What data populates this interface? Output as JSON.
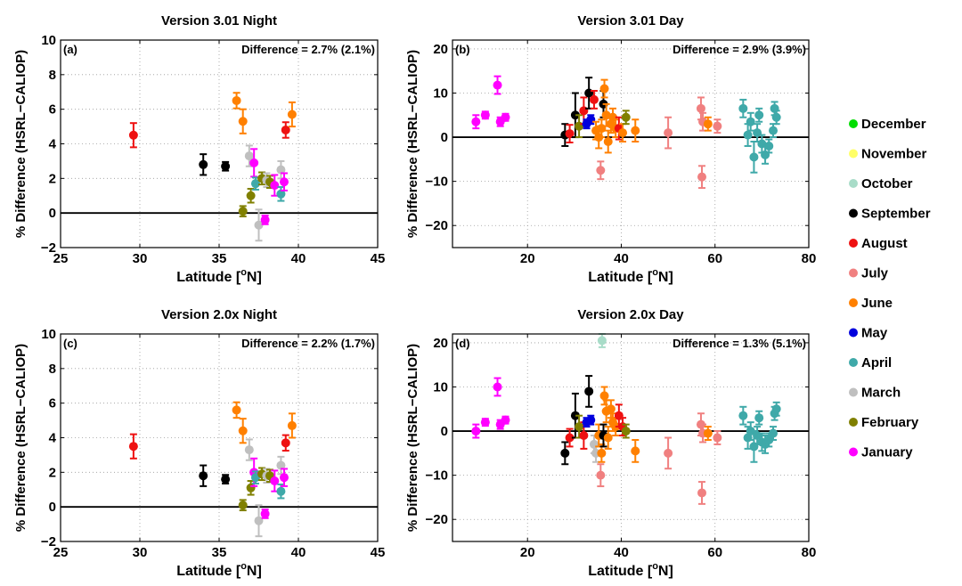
{
  "figure": {
    "ylabel": "% Difference (HSRL−CALIOP)",
    "xlabel_prefix": "Latitude [",
    "xlabel_sup": "o",
    "xlabel_suffix": "N]"
  },
  "months": [
    {
      "name": "December",
      "color": "#00dd00"
    },
    {
      "name": "November",
      "color": "#ffff66"
    },
    {
      "name": "October",
      "color": "#a8dcc8"
    },
    {
      "name": "September",
      "color": "#000000"
    },
    {
      "name": "August",
      "color": "#ee1111"
    },
    {
      "name": "July",
      "color": "#f08080"
    },
    {
      "name": "June",
      "color": "#ff8000"
    },
    {
      "name": "May",
      "color": "#0000dd"
    },
    {
      "name": "April",
      "color": "#3fa9a9"
    },
    {
      "name": "March",
      "color": "#bfbfbf"
    },
    {
      "name": "February",
      "color": "#808000"
    },
    {
      "name": "January",
      "color": "#ff00ff"
    }
  ],
  "chart_data": [
    {
      "type": "scatter",
      "panel": "(a)",
      "title": "Version 3.01 Night",
      "annotation": "Difference = 2.7% (2.1%)",
      "xlim": [
        25,
        45
      ],
      "ylim": [
        -2,
        10
      ],
      "xticks": [
        25,
        30,
        35,
        40,
        45
      ],
      "yticks": [
        -2,
        0,
        2,
        4,
        6,
        8,
        10
      ],
      "points": [
        {
          "x": 29.6,
          "y": 4.5,
          "err": 0.7,
          "month": "August"
        },
        {
          "x": 34.0,
          "y": 2.8,
          "err": 0.6,
          "month": "September"
        },
        {
          "x": 35.4,
          "y": 2.7,
          "err": 0.25,
          "month": "September"
        },
        {
          "x": 36.1,
          "y": 6.5,
          "err": 0.45,
          "month": "June"
        },
        {
          "x": 36.5,
          "y": 0.1,
          "err": 0.3,
          "month": "February"
        },
        {
          "x": 36.5,
          "y": 5.3,
          "err": 0.7,
          "month": "June"
        },
        {
          "x": 36.9,
          "y": 3.3,
          "err": 0.6,
          "month": "March"
        },
        {
          "x": 37.0,
          "y": 1.0,
          "err": 0.4,
          "month": "February"
        },
        {
          "x": 37.2,
          "y": 2.9,
          "err": 0.8,
          "month": "January"
        },
        {
          "x": 37.3,
          "y": 1.7,
          "err": 0.35,
          "month": "April"
        },
        {
          "x": 37.5,
          "y": -0.7,
          "err": 0.9,
          "month": "March"
        },
        {
          "x": 37.7,
          "y": 2.0,
          "err": 0.35,
          "month": "February"
        },
        {
          "x": 37.9,
          "y": -0.4,
          "err": 0.25,
          "month": "January"
        },
        {
          "x": 38.0,
          "y": 1.9,
          "err": 0.4,
          "month": "March"
        },
        {
          "x": 38.2,
          "y": 1.8,
          "err": 0.35,
          "month": "February"
        },
        {
          "x": 38.5,
          "y": 1.6,
          "err": 0.6,
          "month": "January"
        },
        {
          "x": 38.9,
          "y": 2.5,
          "err": 0.5,
          "month": "March"
        },
        {
          "x": 38.9,
          "y": 1.1,
          "err": 0.4,
          "month": "April"
        },
        {
          "x": 39.1,
          "y": 1.8,
          "err": 0.5,
          "month": "January"
        },
        {
          "x": 39.2,
          "y": 4.8,
          "err": 0.45,
          "month": "August"
        },
        {
          "x": 39.6,
          "y": 5.7,
          "err": 0.7,
          "month": "June"
        }
      ]
    },
    {
      "type": "scatter",
      "panel": "(b)",
      "title": "Version 3.01 Day",
      "annotation": "Difference = 2.9% (3.9%)",
      "xlim": [
        4,
        80
      ],
      "ylim": [
        -25,
        22
      ],
      "xticks": [
        20,
        40,
        60,
        80
      ],
      "yticks": [
        -20,
        -10,
        0,
        10,
        20
      ],
      "points": [
        {
          "x": 9.0,
          "y": 3.5,
          "err": 1.5,
          "month": "January"
        },
        {
          "x": 11.0,
          "y": 5.0,
          "err": 0.8,
          "month": "January"
        },
        {
          "x": 13.6,
          "y": 11.8,
          "err": 2.0,
          "month": "January"
        },
        {
          "x": 14.2,
          "y": 3.5,
          "err": 1.0,
          "month": "January"
        },
        {
          "x": 15.3,
          "y": 4.5,
          "err": 0.8,
          "month": "January"
        },
        {
          "x": 28.0,
          "y": 0.5,
          "err": 2.5,
          "month": "September"
        },
        {
          "x": 29.0,
          "y": 0.8,
          "err": 2.0,
          "month": "August"
        },
        {
          "x": 30.2,
          "y": 5.0,
          "err": 5.0,
          "month": "September"
        },
        {
          "x": 31.0,
          "y": 2.5,
          "err": 2.5,
          "month": "February"
        },
        {
          "x": 32.0,
          "y": 6.0,
          "err": 3.0,
          "month": "August"
        },
        {
          "x": 32.6,
          "y": 3.0,
          "err": 1.0,
          "month": "May"
        },
        {
          "x": 33.1,
          "y": 10.0,
          "err": 3.5,
          "month": "September"
        },
        {
          "x": 33.5,
          "y": 4.0,
          "err": 1.0,
          "month": "May"
        },
        {
          "x": 34.2,
          "y": 8.5,
          "err": 2.0,
          "month": "August"
        },
        {
          "x": 34.6,
          "y": 1.5,
          "err": 2.0,
          "month": "June"
        },
        {
          "x": 35.2,
          "y": 0.0,
          "err": 2.5,
          "month": "June"
        },
        {
          "x": 35.6,
          "y": -7.5,
          "err": 2.0,
          "month": "July"
        },
        {
          "x": 35.8,
          "y": 2.0,
          "err": 2.0,
          "month": "June"
        },
        {
          "x": 36.2,
          "y": 7.5,
          "err": 3.0,
          "month": "September"
        },
        {
          "x": 36.4,
          "y": 11.0,
          "err": 2.0,
          "month": "June"
        },
        {
          "x": 36.8,
          "y": 5.0,
          "err": 2.5,
          "month": "June"
        },
        {
          "x": 37.2,
          "y": -1.0,
          "err": 2.5,
          "month": "June"
        },
        {
          "x": 37.8,
          "y": 3.0,
          "err": 2.0,
          "month": "June"
        },
        {
          "x": 38.2,
          "y": 4.5,
          "err": 2.0,
          "month": "June"
        },
        {
          "x": 38.8,
          "y": 2.0,
          "err": 2.0,
          "month": "June"
        },
        {
          "x": 39.5,
          "y": 2.0,
          "err": 2.5,
          "month": "August"
        },
        {
          "x": 40.3,
          "y": 1.0,
          "err": 2.0,
          "month": "June"
        },
        {
          "x": 41.0,
          "y": 4.5,
          "err": 1.5,
          "month": "February"
        },
        {
          "x": 43.0,
          "y": 1.5,
          "err": 2.5,
          "month": "June"
        },
        {
          "x": 50.0,
          "y": 1.0,
          "err": 3.5,
          "month": "July"
        },
        {
          "x": 57.0,
          "y": 6.5,
          "err": 2.5,
          "month": "July"
        },
        {
          "x": 57.2,
          "y": -9.0,
          "err": 2.5,
          "month": "July"
        },
        {
          "x": 57.4,
          "y": 3.5,
          "err": 2.0,
          "month": "July"
        },
        {
          "x": 58.5,
          "y": 3.0,
          "err": 1.5,
          "month": "June"
        },
        {
          "x": 60.5,
          "y": 2.5,
          "err": 1.5,
          "month": "July"
        },
        {
          "x": 66.0,
          "y": 6.5,
          "err": 2.0,
          "month": "April"
        },
        {
          "x": 67.0,
          "y": 0.5,
          "err": 2.5,
          "month": "April"
        },
        {
          "x": 67.6,
          "y": 3.5,
          "err": 2.0,
          "month": "April"
        },
        {
          "x": 68.3,
          "y": -4.5,
          "err": 3.5,
          "month": "April"
        },
        {
          "x": 69.0,
          "y": 1.0,
          "err": 2.0,
          "month": "April"
        },
        {
          "x": 69.4,
          "y": 5.0,
          "err": 1.5,
          "month": "April"
        },
        {
          "x": 70.0,
          "y": -1.5,
          "err": 2.0,
          "month": "April"
        },
        {
          "x": 70.7,
          "y": -4.0,
          "err": 2.0,
          "month": "April"
        },
        {
          "x": 71.5,
          "y": -2.0,
          "err": 1.5,
          "month": "April"
        },
        {
          "x": 72.4,
          "y": 1.5,
          "err": 1.5,
          "month": "April"
        },
        {
          "x": 72.7,
          "y": 6.5,
          "err": 1.5,
          "month": "April"
        },
        {
          "x": 73.1,
          "y": 4.5,
          "err": 1.5,
          "month": "April"
        }
      ]
    },
    {
      "type": "scatter",
      "panel": "(c)",
      "title": "Version 2.0x Night",
      "annotation": "Difference = 2.2% (1.7%)",
      "xlim": [
        25,
        45
      ],
      "ylim": [
        -2,
        10
      ],
      "xticks": [
        25,
        30,
        35,
        40,
        45
      ],
      "yticks": [
        -2,
        0,
        2,
        4,
        6,
        8,
        10
      ],
      "points": [
        {
          "x": 29.6,
          "y": 3.5,
          "err": 0.7,
          "month": "August"
        },
        {
          "x": 34.0,
          "y": 1.8,
          "err": 0.6,
          "month": "September"
        },
        {
          "x": 35.4,
          "y": 1.6,
          "err": 0.25,
          "month": "September"
        },
        {
          "x": 36.1,
          "y": 5.6,
          "err": 0.45,
          "month": "June"
        },
        {
          "x": 36.5,
          "y": 0.1,
          "err": 0.3,
          "month": "February"
        },
        {
          "x": 36.5,
          "y": 4.4,
          "err": 0.7,
          "month": "June"
        },
        {
          "x": 36.9,
          "y": 3.3,
          "err": 0.6,
          "month": "March"
        },
        {
          "x": 37.0,
          "y": 1.1,
          "err": 0.4,
          "month": "February"
        },
        {
          "x": 37.2,
          "y": 2.0,
          "err": 0.8,
          "month": "January"
        },
        {
          "x": 37.3,
          "y": 1.7,
          "err": 0.35,
          "month": "April"
        },
        {
          "x": 37.5,
          "y": -0.8,
          "err": 0.9,
          "month": "March"
        },
        {
          "x": 37.7,
          "y": 1.9,
          "err": 0.35,
          "month": "February"
        },
        {
          "x": 37.9,
          "y": -0.4,
          "err": 0.25,
          "month": "January"
        },
        {
          "x": 38.0,
          "y": 1.8,
          "err": 0.4,
          "month": "March"
        },
        {
          "x": 38.2,
          "y": 1.8,
          "err": 0.35,
          "month": "February"
        },
        {
          "x": 38.5,
          "y": 1.5,
          "err": 0.6,
          "month": "January"
        },
        {
          "x": 38.9,
          "y": 2.4,
          "err": 0.5,
          "month": "March"
        },
        {
          "x": 38.9,
          "y": 0.9,
          "err": 0.4,
          "month": "April"
        },
        {
          "x": 39.1,
          "y": 1.7,
          "err": 0.5,
          "month": "January"
        },
        {
          "x": 39.2,
          "y": 3.7,
          "err": 0.45,
          "month": "August"
        },
        {
          "x": 39.6,
          "y": 4.7,
          "err": 0.7,
          "month": "June"
        }
      ]
    },
    {
      "type": "scatter",
      "panel": "(d)",
      "title": "Version 2.0x Day",
      "annotation": "Difference = 1.3% (5.1%)",
      "xlim": [
        4,
        80
      ],
      "ylim": [
        -25,
        22
      ],
      "xticks": [
        20,
        40,
        60,
        80
      ],
      "yticks": [
        -20,
        -10,
        0,
        10,
        20
      ],
      "points": [
        {
          "x": 9.0,
          "y": 0.0,
          "err": 1.5,
          "month": "January"
        },
        {
          "x": 11.0,
          "y": 2.0,
          "err": 0.8,
          "month": "January"
        },
        {
          "x": 13.6,
          "y": 10.0,
          "err": 2.0,
          "month": "January"
        },
        {
          "x": 14.2,
          "y": 1.5,
          "err": 1.0,
          "month": "January"
        },
        {
          "x": 15.3,
          "y": 2.5,
          "err": 0.8,
          "month": "January"
        },
        {
          "x": 28.0,
          "y": -5.0,
          "err": 2.5,
          "month": "September"
        },
        {
          "x": 29.0,
          "y": -1.5,
          "err": 2.0,
          "month": "August"
        },
        {
          "x": 30.2,
          "y": 3.5,
          "err": 5.0,
          "month": "September"
        },
        {
          "x": 31.0,
          "y": 1.0,
          "err": 2.5,
          "month": "February"
        },
        {
          "x": 32.0,
          "y": -1.0,
          "err": 3.0,
          "month": "August"
        },
        {
          "x": 32.6,
          "y": 2.0,
          "err": 1.0,
          "month": "May"
        },
        {
          "x": 33.1,
          "y": 9.0,
          "err": 3.5,
          "month": "September"
        },
        {
          "x": 33.5,
          "y": 2.5,
          "err": 1.0,
          "month": "May"
        },
        {
          "x": 34.2,
          "y": -3.0,
          "err": 2.0,
          "month": "March"
        },
        {
          "x": 34.6,
          "y": -5.0,
          "err": 2.0,
          "month": "March"
        },
        {
          "x": 35.2,
          "y": -1.0,
          "err": 2.5,
          "month": "June"
        },
        {
          "x": 35.6,
          "y": -10.0,
          "err": 2.5,
          "month": "July"
        },
        {
          "x": 35.8,
          "y": -5.0,
          "err": 2.0,
          "month": "June"
        },
        {
          "x": 35.9,
          "y": 20.5,
          "err": 1.5,
          "month": "October"
        },
        {
          "x": 36.2,
          "y": -1.0,
          "err": 2.5,
          "month": "September"
        },
        {
          "x": 36.4,
          "y": 8.0,
          "err": 2.0,
          "month": "June"
        },
        {
          "x": 36.8,
          "y": 4.5,
          "err": 2.5,
          "month": "June"
        },
        {
          "x": 37.2,
          "y": -1.5,
          "err": 2.5,
          "month": "June"
        },
        {
          "x": 37.8,
          "y": 5.0,
          "err": 2.0,
          "month": "June"
        },
        {
          "x": 38.2,
          "y": 2.0,
          "err": 2.0,
          "month": "June"
        },
        {
          "x": 38.8,
          "y": 1.0,
          "err": 2.0,
          "month": "June"
        },
        {
          "x": 39.5,
          "y": 3.5,
          "err": 2.5,
          "month": "August"
        },
        {
          "x": 40.3,
          "y": 1.0,
          "err": 2.0,
          "month": "August"
        },
        {
          "x": 41.0,
          "y": 0.0,
          "err": 1.5,
          "month": "February"
        },
        {
          "x": 43.0,
          "y": -4.5,
          "err": 2.5,
          "month": "June"
        },
        {
          "x": 50.0,
          "y": -5.0,
          "err": 3.5,
          "month": "July"
        },
        {
          "x": 57.0,
          "y": 1.5,
          "err": 2.5,
          "month": "July"
        },
        {
          "x": 57.2,
          "y": -14.0,
          "err": 2.5,
          "month": "July"
        },
        {
          "x": 57.4,
          "y": -0.5,
          "err": 2.0,
          "month": "July"
        },
        {
          "x": 58.5,
          "y": -0.5,
          "err": 1.5,
          "month": "June"
        },
        {
          "x": 60.5,
          "y": -1.5,
          "err": 1.5,
          "month": "July"
        },
        {
          "x": 66.0,
          "y": 3.5,
          "err": 2.0,
          "month": "April"
        },
        {
          "x": 67.0,
          "y": -1.5,
          "err": 2.5,
          "month": "April"
        },
        {
          "x": 67.6,
          "y": 0.0,
          "err": 2.0,
          "month": "April"
        },
        {
          "x": 68.3,
          "y": -3.5,
          "err": 3.5,
          "month": "April"
        },
        {
          "x": 69.0,
          "y": -1.0,
          "err": 2.0,
          "month": "April"
        },
        {
          "x": 69.4,
          "y": 3.0,
          "err": 1.5,
          "month": "April"
        },
        {
          "x": 70.0,
          "y": -2.5,
          "err": 2.0,
          "month": "April"
        },
        {
          "x": 70.7,
          "y": -3.0,
          "err": 2.0,
          "month": "April"
        },
        {
          "x": 71.5,
          "y": -2.0,
          "err": 1.5,
          "month": "April"
        },
        {
          "x": 72.4,
          "y": -0.5,
          "err": 1.5,
          "month": "April"
        },
        {
          "x": 72.7,
          "y": 4.0,
          "err": 1.5,
          "month": "April"
        },
        {
          "x": 73.1,
          "y": 5.0,
          "err": 1.5,
          "month": "April"
        }
      ]
    }
  ]
}
